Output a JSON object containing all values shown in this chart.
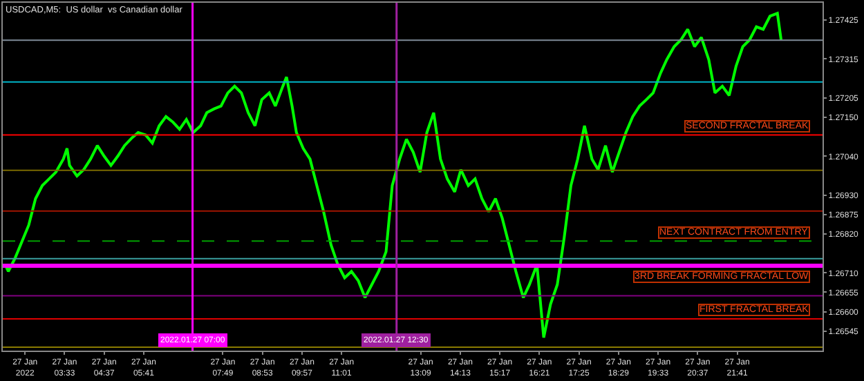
{
  "chart_data": {
    "type": "line",
    "title": "USDCAD,M5:  US dollar  vs Canadian dollar",
    "series": [
      {
        "color": "#00ff00",
        "x": [
          "2022-01-27T01:57",
          "2022-01-27T02:02",
          "2022-01-27T02:13",
          "2022-01-27T02:35",
          "2022-01-27T02:46",
          "2022-01-27T02:57",
          "2022-01-27T03:08",
          "2022-01-27T03:19",
          "2022-01-27T03:31",
          "2022-01-27T03:37",
          "2022-01-27T03:41",
          "2022-01-27T03:53",
          "2022-01-27T04:04",
          "2022-01-27T04:15",
          "2022-01-27T04:26",
          "2022-01-27T04:37",
          "2022-01-27T04:48",
          "2022-01-27T04:59",
          "2022-01-27T05:10",
          "2022-01-27T05:22",
          "2022-01-27T05:32",
          "2022-01-27T05:44",
          "2022-01-27T05:55",
          "2022-01-27T06:06",
          "2022-01-27T06:17",
          "2022-01-27T06:28",
          "2022-01-27T06:39",
          "2022-01-27T06:50",
          "2022-01-27T07:01",
          "2022-01-27T07:13",
          "2022-01-27T07:23",
          "2022-01-27T07:35",
          "2022-01-27T07:46",
          "2022-01-27T07:57",
          "2022-01-27T08:08",
          "2022-01-27T08:19",
          "2022-01-27T08:30",
          "2022-01-27T08:41",
          "2022-01-27T08:52",
          "2022-01-27T09:04",
          "2022-01-27T09:14",
          "2022-01-27T09:26",
          "2022-01-27T09:32",
          "2022-01-27T09:41",
          "2022-01-27T09:48",
          "2022-01-27T09:59",
          "2022-01-27T10:10",
          "2022-01-27T10:21",
          "2022-01-27T10:32",
          "2022-01-27T10:44",
          "2022-01-27T10:55",
          "2022-01-27T11:06",
          "2022-01-27T11:17",
          "2022-01-27T11:28",
          "2022-01-27T11:39",
          "2022-01-27T11:50",
          "2022-01-27T12:01",
          "2022-01-27T12:13",
          "2022-01-27T12:23",
          "2022-01-27T12:35",
          "2022-01-27T12:46",
          "2022-01-27T12:57",
          "2022-01-27T13:08",
          "2022-01-27T13:19",
          "2022-01-27T13:30",
          "2022-01-27T13:41",
          "2022-01-27T13:52",
          "2022-01-27T14:04",
          "2022-01-27T14:14",
          "2022-01-27T14:26",
          "2022-01-27T14:37",
          "2022-01-27T14:48",
          "2022-01-27T14:59",
          "2022-01-27T15:10",
          "2022-01-27T15:21",
          "2022-01-27T15:32",
          "2022-01-27T15:43",
          "2022-01-27T15:55",
          "2022-01-27T16:05",
          "2022-01-27T16:17",
          "2022-01-27T16:28",
          "2022-01-27T16:39",
          "2022-01-27T16:50",
          "2022-01-27T17:01",
          "2022-01-27T17:12",
          "2022-01-27T17:23",
          "2022-01-27T17:34",
          "2022-01-27T17:46",
          "2022-01-27T17:56",
          "2022-01-27T18:08",
          "2022-01-27T18:19",
          "2022-01-27T18:30",
          "2022-01-27T18:41",
          "2022-01-27T18:52",
          "2022-01-27T19:03",
          "2022-01-27T19:14",
          "2022-01-27T19:25",
          "2022-01-27T19:37",
          "2022-01-27T19:47",
          "2022-01-27T19:59",
          "2022-01-27T20:10",
          "2022-01-27T20:21",
          "2022-01-27T20:32",
          "2022-01-27T20:43",
          "2022-01-27T20:55",
          "2022-01-27T21:05",
          "2022-01-27T21:17",
          "2022-01-27T21:28",
          "2022-01-27T21:39",
          "2022-01-27T21:50",
          "2022-01-27T22:01",
          "2022-01-27T22:12",
          "2022-01-27T22:23",
          "2022-01-27T22:34",
          "2022-01-27T22:46",
          "2022-01-27T22:52"
        ],
        "values": [
          1.26733,
          1.26714,
          1.26752,
          1.26845,
          1.2692,
          1.26957,
          1.26976,
          1.26995,
          1.27032,
          1.27062,
          1.27014,
          1.26984,
          1.27002,
          1.27032,
          1.2707,
          1.2704,
          1.27014,
          1.2704,
          1.2707,
          1.27092,
          1.27107,
          1.271,
          1.27077,
          1.27126,
          1.27152,
          1.27137,
          1.27116,
          1.27144,
          1.27107,
          1.27126,
          1.27163,
          1.27174,
          1.27182,
          1.27219,
          1.27238,
          1.27219,
          1.27163,
          1.27126,
          1.272,
          1.27219,
          1.27182,
          1.27238,
          1.27264,
          1.27182,
          1.27107,
          1.27062,
          1.27032,
          1.26957,
          1.26883,
          1.26789,
          1.26733,
          1.26696,
          1.26714,
          1.26688,
          1.2664,
          1.26677,
          1.26714,
          1.2677,
          1.26957,
          1.27032,
          1.27088,
          1.27051,
          1.26995,
          1.27107,
          1.27163,
          1.27032,
          1.26976,
          1.26939,
          1.27002,
          1.26957,
          1.26976,
          1.2692,
          1.26883,
          1.2692,
          1.26864,
          1.26789,
          1.26714,
          1.2664,
          1.26677,
          1.26733,
          1.26527,
          1.26621,
          1.26677,
          1.26808,
          1.26957,
          1.27032,
          1.27126,
          1.27032,
          1.27002,
          1.2707,
          1.26995,
          1.27051,
          1.27107,
          1.27152,
          1.27182,
          1.272,
          1.27219,
          1.27275,
          1.27313,
          1.2735,
          1.27369,
          1.27399,
          1.2735,
          1.27376,
          1.27313,
          1.27219,
          1.27238,
          1.27212,
          1.27294,
          1.2735,
          1.27369,
          1.27406,
          1.27399,
          1.27436,
          1.27444,
          1.27369
        ]
      }
    ],
    "xlim": [
      "2022-01-27T01:53",
      "2022-01-27T23:59"
    ],
    "ylim": [
      1.2649,
      1.27474
    ],
    "xticks": [
      {
        "value": "2022-01-27T02:29",
        "label": "27 Jan 2022"
      },
      {
        "value": "2022-01-27T03:33",
        "label": "27 Jan 03:33"
      },
      {
        "value": "2022-01-27T04:37",
        "label": "27 Jan 04:37"
      },
      {
        "value": "2022-01-27T05:41",
        "label": "27 Jan 05:41"
      },
      {
        "value": "2022-01-27T07:49",
        "label": "27 Jan 07:49"
      },
      {
        "value": "2022-01-27T08:53",
        "label": "27 Jan 08:53"
      },
      {
        "value": "2022-01-27T09:57",
        "label": "27 Jan 09:57"
      },
      {
        "value": "2022-01-27T11:01",
        "label": "27 Jan 11:01"
      },
      {
        "value": "2022-01-27T13:09",
        "label": "27 Jan 13:09"
      },
      {
        "value": "2022-01-27T14:13",
        "label": "27 Jan 14:13"
      },
      {
        "value": "2022-01-27T15:17",
        "label": "27 Jan 15:17"
      },
      {
        "value": "2022-01-27T16:21",
        "label": "27 Jan 16:21"
      },
      {
        "value": "2022-01-27T17:25",
        "label": "27 Jan 17:25"
      },
      {
        "value": "2022-01-27T18:29",
        "label": "27 Jan 18:29"
      },
      {
        "value": "2022-01-27T19:33",
        "label": "27 Jan 19:33"
      },
      {
        "value": "2022-01-27T20:37",
        "label": "27 Jan 20:37"
      },
      {
        "value": "2022-01-27T21:41",
        "label": "27 Jan 21:41"
      }
    ],
    "yticks": [
      1.27425,
      1.27315,
      1.27205,
      {
        "value": 1.2715,
        "label": "1.27150"
      },
      {
        "value": 1.2704,
        "label": "1.27040"
      },
      {
        "value": 1.2693,
        "label": "1.26930"
      },
      1.26875,
      {
        "value": 1.2682,
        "label": "1.26820"
      },
      {
        "value": 1.2671,
        "label": "1.26710"
      },
      1.26655,
      {
        "value": 1.266,
        "label": "1.26600"
      },
      1.26545
    ],
    "ref_lines": [
      {
        "axis": "y",
        "value": 1.27368,
        "label": null,
        "color": "#7f8c99"
      },
      {
        "axis": "y",
        "value": 1.2725,
        "label": null,
        "color": "#00b4c8"
      },
      {
        "axis": "y",
        "value": 1.271,
        "label": "SECOND FRACTAL BREAK",
        "color": "#ff0000"
      },
      {
        "axis": "y",
        "value": 1.27,
        "label": null,
        "color": "#7a6a00"
      },
      {
        "axis": "y",
        "value": 1.26885,
        "label": null,
        "color": "#a01400"
      },
      {
        "axis": "y",
        "value": 1.268,
        "label": "NEXT CONTRACT FROM ENTRY",
        "color": "#00a000",
        "line_style": "dashed"
      },
      {
        "axis": "y",
        "value": 1.2675,
        "label": null,
        "color": "#3aa0a0"
      },
      {
        "axis": "y",
        "value": 1.2673,
        "label": "3RD BREAK FORMING FRACTAL LOW",
        "color": "#ff00ff"
      },
      {
        "axis": "y",
        "value": 1.26645,
        "label": null,
        "color": "#800080"
      },
      {
        "axis": "y",
        "value": 1.2658,
        "label": "FIRST FRACTAL BREAK",
        "color": "#e00000"
      },
      {
        "axis": "y",
        "value": 1.265,
        "label": null,
        "color": "#8a7a00"
      },
      {
        "axis": "x",
        "value": "2022-01-27T07:00",
        "label": "2022.01.27 07:00",
        "color": "#ff00ff"
      },
      {
        "axis": "x",
        "value": "2022-01-27T12:30",
        "label": "2022.01.27 12:30",
        "color": "#a020a0"
      }
    ],
    "grid": false,
    "marker": "none",
    "line_style": "solid"
  }
}
